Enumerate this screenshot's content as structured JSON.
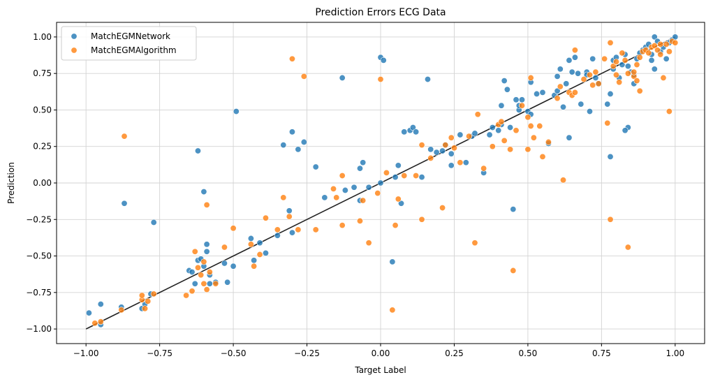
{
  "chart_data": {
    "type": "scatter",
    "title": "Prediction Errors ECG Data",
    "xlabel": "Target Label",
    "ylabel": "Prediction",
    "xlim": [
      -1.1,
      1.1
    ],
    "ylim": [
      -1.1,
      1.1
    ],
    "x_ticks": [
      -1.0,
      -0.75,
      -0.5,
      -0.25,
      0.0,
      0.25,
      0.5,
      0.75,
      1.0
    ],
    "x_tick_labels": [
      "−1.00",
      "−0.75",
      "−0.50",
      "−0.25",
      "0.00",
      "0.25",
      "0.50",
      "0.75",
      "1.00"
    ],
    "y_ticks": [
      -1.0,
      -0.75,
      -0.5,
      -0.25,
      0.0,
      0.25,
      0.5,
      0.75,
      1.0
    ],
    "y_tick_labels": [
      "−1.00",
      "−0.75",
      "−0.50",
      "−0.25",
      "0.00",
      "0.25",
      "0.50",
      "0.75",
      "1.00"
    ],
    "grid": true,
    "legend_position": "top-left",
    "reference_line": {
      "x": [
        -1.0,
        1.0
      ],
      "y": [
        -1.0,
        1.0
      ],
      "color": "#222222"
    },
    "series": [
      {
        "name": "MatchEGMNetwork",
        "color": "#1f77b4",
        "points": [
          [
            -0.99,
            -0.89
          ],
          [
            -0.95,
            -0.83
          ],
          [
            -0.95,
            -0.97
          ],
          [
            -0.88,
            -0.85
          ],
          [
            -0.87,
            -0.14
          ],
          [
            -0.81,
            -0.86
          ],
          [
            -0.8,
            -0.83
          ],
          [
            -0.78,
            -0.76
          ],
          [
            -0.77,
            -0.27
          ],
          [
            -0.65,
            -0.6
          ],
          [
            -0.64,
            -0.61
          ],
          [
            -0.63,
            -0.69
          ],
          [
            -0.62,
            -0.53
          ],
          [
            -0.62,
            0.22
          ],
          [
            -0.61,
            -0.52
          ],
          [
            -0.6,
            -0.06
          ],
          [
            -0.6,
            -0.57
          ],
          [
            -0.59,
            -0.42
          ],
          [
            -0.59,
            -0.47
          ],
          [
            -0.58,
            -0.69
          ],
          [
            -0.58,
            -0.63
          ],
          [
            -0.56,
            -0.68
          ],
          [
            -0.53,
            -0.55
          ],
          [
            -0.52,
            -0.68
          ],
          [
            -0.5,
            -0.57
          ],
          [
            -0.49,
            0.49
          ],
          [
            -0.44,
            -0.38
          ],
          [
            -0.43,
            -0.53
          ],
          [
            -0.41,
            -0.41
          ],
          [
            -0.39,
            -0.48
          ],
          [
            -0.35,
            -0.36
          ],
          [
            -0.33,
            0.26
          ],
          [
            -0.31,
            -0.19
          ],
          [
            -0.3,
            0.35
          ],
          [
            -0.3,
            -0.34
          ],
          [
            -0.28,
            0.23
          ],
          [
            -0.26,
            0.28
          ],
          [
            -0.22,
            0.11
          ],
          [
            -0.19,
            -0.1
          ],
          [
            -0.13,
            0.72
          ],
          [
            -0.12,
            -0.05
          ],
          [
            -0.09,
            -0.03
          ],
          [
            -0.07,
            0.1
          ],
          [
            -0.07,
            -0.12
          ],
          [
            -0.06,
            0.14
          ],
          [
            -0.04,
            -0.03
          ],
          [
            0.0,
            0.86
          ],
          [
            0.01,
            0.84
          ],
          [
            0.0,
            0.0
          ],
          [
            0.04,
            -0.54
          ],
          [
            0.05,
            0.04
          ],
          [
            0.06,
            0.12
          ],
          [
            0.07,
            -0.14
          ],
          [
            0.08,
            0.35
          ],
          [
            0.1,
            0.36
          ],
          [
            0.11,
            0.38
          ],
          [
            0.12,
            0.35
          ],
          [
            0.14,
            0.04
          ],
          [
            0.16,
            0.71
          ],
          [
            0.17,
            0.23
          ],
          [
            0.19,
            0.21
          ],
          [
            0.21,
            0.22
          ],
          [
            0.22,
            0.26
          ],
          [
            0.24,
            0.2
          ],
          [
            0.24,
            0.12
          ],
          [
            0.27,
            0.33
          ],
          [
            0.29,
            0.14
          ],
          [
            0.31,
            0.32
          ],
          [
            0.32,
            0.34
          ],
          [
            0.35,
            0.07
          ],
          [
            0.37,
            0.33
          ],
          [
            0.38,
            0.38
          ],
          [
            0.4,
            0.36
          ],
          [
            0.41,
            0.4
          ],
          [
            0.41,
            0.53
          ],
          [
            0.42,
            0.7
          ],
          [
            0.43,
            0.64
          ],
          [
            0.44,
            0.38
          ],
          [
            0.45,
            -0.18
          ],
          [
            0.46,
            0.57
          ],
          [
            0.47,
            0.5
          ],
          [
            0.47,
            0.53
          ],
          [
            0.48,
            0.57
          ],
          [
            0.5,
            0.49
          ],
          [
            0.51,
            0.47
          ],
          [
            0.51,
            0.69
          ],
          [
            0.53,
            0.61
          ],
          [
            0.55,
            0.62
          ],
          [
            0.57,
            0.27
          ],
          [
            0.59,
            0.6
          ],
          [
            0.6,
            0.63
          ],
          [
            0.6,
            0.73
          ],
          [
            0.61,
            0.78
          ],
          [
            0.62,
            0.52
          ],
          [
            0.63,
            0.68
          ],
          [
            0.64,
            0.84
          ],
          [
            0.64,
            0.31
          ],
          [
            0.65,
            0.76
          ],
          [
            0.66,
            0.86
          ],
          [
            0.67,
            0.75
          ],
          [
            0.68,
            0.54
          ],
          [
            0.7,
            0.76
          ],
          [
            0.7,
            0.74
          ],
          [
            0.71,
            0.49
          ],
          [
            0.72,
            0.85
          ],
          [
            0.73,
            0.72
          ],
          [
            0.74,
            0.68
          ],
          [
            0.77,
            0.54
          ],
          [
            0.78,
            0.61
          ],
          [
            0.78,
            0.18
          ],
          [
            0.79,
            0.84
          ],
          [
            0.79,
            0.78
          ],
          [
            0.8,
            0.86
          ],
          [
            0.81,
            0.72
          ],
          [
            0.82,
            0.81
          ],
          [
            0.83,
            0.88
          ],
          [
            0.84,
            0.8
          ],
          [
            0.84,
            0.38
          ],
          [
            0.85,
            0.76
          ],
          [
            0.86,
            0.68
          ],
          [
            0.86,
            0.74
          ],
          [
            0.87,
            0.85
          ],
          [
            0.88,
            0.89
          ],
          [
            0.89,
            0.91
          ],
          [
            0.9,
            0.93
          ],
          [
            0.91,
            0.95
          ],
          [
            0.92,
            0.88
          ],
          [
            0.93,
            1.0
          ],
          [
            0.93,
            0.78
          ],
          [
            0.94,
            0.97
          ],
          [
            0.95,
            0.9
          ],
          [
            0.96,
            0.93
          ],
          [
            0.97,
            0.85
          ],
          [
            0.98,
            0.96
          ],
          [
            0.99,
            0.98
          ],
          [
            1.0,
            1.0
          ],
          [
            0.83,
            0.36
          ],
          [
            0.92,
            0.84
          ]
        ]
      },
      {
        "name": "MatchEGMAlgorithm",
        "color": "#ff7f0e",
        "points": [
          [
            -0.97,
            -0.96
          ],
          [
            -0.95,
            -0.95
          ],
          [
            -0.88,
            -0.87
          ],
          [
            -0.87,
            0.32
          ],
          [
            -0.81,
            -0.8
          ],
          [
            -0.81,
            -0.77
          ],
          [
            -0.8,
            -0.86
          ],
          [
            -0.79,
            -0.81
          ],
          [
            -0.77,
            -0.76
          ],
          [
            -0.66,
            -0.77
          ],
          [
            -0.64,
            -0.74
          ],
          [
            -0.63,
            -0.47
          ],
          [
            -0.62,
            -0.58
          ],
          [
            -0.61,
            -0.63
          ],
          [
            -0.6,
            -0.69
          ],
          [
            -0.6,
            -0.54
          ],
          [
            -0.59,
            -0.73
          ],
          [
            -0.59,
            -0.15
          ],
          [
            -0.58,
            -0.61
          ],
          [
            -0.56,
            -0.69
          ],
          [
            -0.53,
            -0.44
          ],
          [
            -0.5,
            -0.31
          ],
          [
            -0.44,
            -0.42
          ],
          [
            -0.43,
            -0.57
          ],
          [
            -0.41,
            -0.49
          ],
          [
            -0.39,
            -0.24
          ],
          [
            -0.35,
            -0.32
          ],
          [
            -0.33,
            -0.1
          ],
          [
            -0.31,
            -0.23
          ],
          [
            -0.3,
            0.85
          ],
          [
            -0.28,
            -0.32
          ],
          [
            -0.26,
            0.73
          ],
          [
            -0.22,
            -0.32
          ],
          [
            -0.16,
            -0.04
          ],
          [
            -0.15,
            -0.1
          ],
          [
            -0.13,
            0.05
          ],
          [
            -0.13,
            -0.29
          ],
          [
            -0.07,
            -0.26
          ],
          [
            -0.06,
            -0.12
          ],
          [
            -0.04,
            -0.41
          ],
          [
            -0.01,
            -0.07
          ],
          [
            0.0,
            0.71
          ],
          [
            0.02,
            0.07
          ],
          [
            0.04,
            -0.87
          ],
          [
            0.05,
            -0.29
          ],
          [
            0.06,
            -0.11
          ],
          [
            0.08,
            0.05
          ],
          [
            0.12,
            0.05
          ],
          [
            0.14,
            0.26
          ],
          [
            0.14,
            -0.25
          ],
          [
            0.17,
            0.17
          ],
          [
            0.21,
            -0.17
          ],
          [
            0.22,
            0.26
          ],
          [
            0.24,
            0.31
          ],
          [
            0.25,
            0.24
          ],
          [
            0.27,
            0.14
          ],
          [
            0.3,
            0.32
          ],
          [
            0.32,
            -0.41
          ],
          [
            0.33,
            0.47
          ],
          [
            0.35,
            0.1
          ],
          [
            0.38,
            0.25
          ],
          [
            0.4,
            0.4
          ],
          [
            0.41,
            0.42
          ],
          [
            0.42,
            0.29
          ],
          [
            0.44,
            0.23
          ],
          [
            0.45,
            -0.6
          ],
          [
            0.46,
            0.36
          ],
          [
            0.48,
            0.53
          ],
          [
            0.5,
            0.45
          ],
          [
            0.51,
            0.39
          ],
          [
            0.51,
            0.72
          ],
          [
            0.5,
            0.23
          ],
          [
            0.52,
            0.31
          ],
          [
            0.54,
            0.39
          ],
          [
            0.55,
            0.18
          ],
          [
            0.57,
            0.28
          ],
          [
            0.6,
            0.58
          ],
          [
            0.61,
            0.66
          ],
          [
            0.62,
            0.02
          ],
          [
            0.64,
            0.62
          ],
          [
            0.65,
            0.6
          ],
          [
            0.66,
            0.91
          ],
          [
            0.66,
            0.62
          ],
          [
            0.69,
            0.71
          ],
          [
            0.71,
            0.74
          ],
          [
            0.72,
            0.67
          ],
          [
            0.73,
            0.76
          ],
          [
            0.74,
            0.68
          ],
          [
            0.77,
            0.41
          ],
          [
            0.78,
            0.96
          ],
          [
            0.78,
            -0.25
          ],
          [
            0.79,
            0.8
          ],
          [
            0.8,
            0.83
          ],
          [
            0.81,
            0.69
          ],
          [
            0.82,
            0.89
          ],
          [
            0.83,
            0.84
          ],
          [
            0.84,
            0.75
          ],
          [
            0.84,
            -0.44
          ],
          [
            0.86,
            0.73
          ],
          [
            0.87,
            0.7
          ],
          [
            0.87,
            0.81
          ],
          [
            0.88,
            0.63
          ],
          [
            0.88,
            0.86
          ],
          [
            0.89,
            0.9
          ],
          [
            0.9,
            0.91
          ],
          [
            0.91,
            0.89
          ],
          [
            0.92,
            0.93
          ],
          [
            0.93,
            0.94
          ],
          [
            0.94,
            0.91
          ],
          [
            0.95,
            0.95
          ],
          [
            0.95,
            0.88
          ],
          [
            0.96,
            0.72
          ],
          [
            0.97,
            0.95
          ],
          [
            0.98,
            0.49
          ],
          [
            0.98,
            0.9
          ],
          [
            0.99,
            0.97
          ],
          [
            1.0,
            0.96
          ],
          [
            0.8,
            0.74
          ],
          [
            0.76,
            0.85
          ],
          [
            0.86,
            0.76
          ]
        ]
      }
    ]
  }
}
